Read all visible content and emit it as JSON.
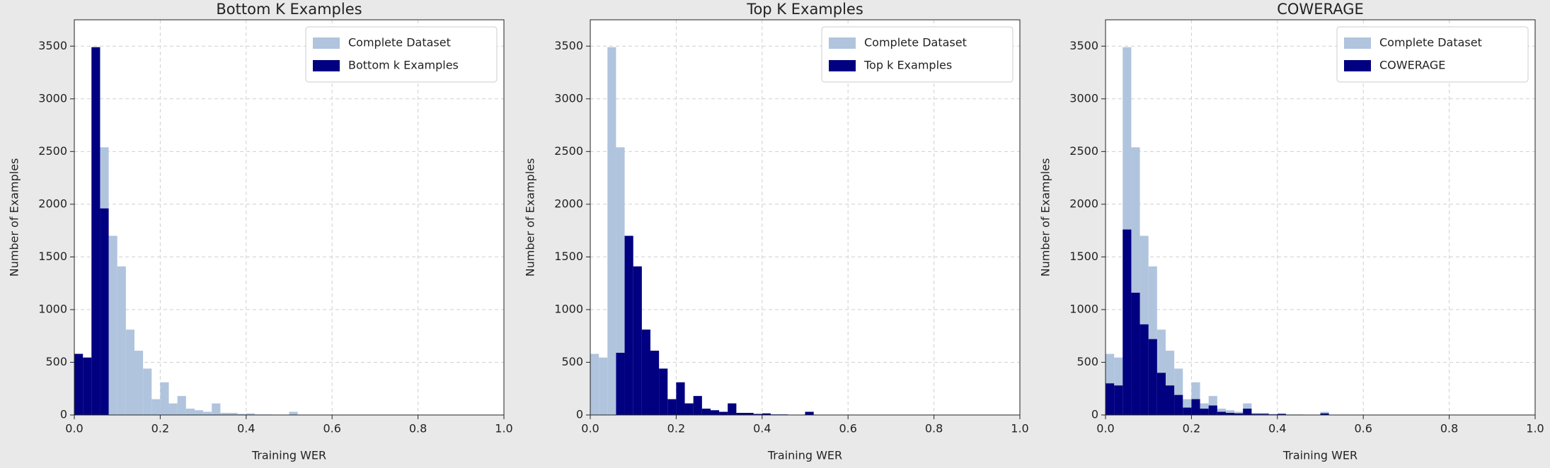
{
  "chart_data": [
    {
      "type": "histogram",
      "title": "Bottom K Examples",
      "xlabel": "Training WER",
      "ylabel": "Number of Examples",
      "bins": [
        0.0,
        0.02,
        0.04,
        0.06,
        0.08,
        0.1,
        0.12,
        0.14,
        0.16,
        0.18,
        0.2,
        0.22,
        0.24,
        0.26,
        0.28,
        0.3,
        0.32,
        0.34,
        0.36,
        0.38,
        0.4,
        0.42,
        0.44,
        0.46,
        0.48,
        0.5,
        0.52,
        0.54,
        0.56,
        0.58,
        0.6,
        0.62,
        0.64,
        0.66,
        0.68,
        0.7,
        0.72,
        0.74,
        0.76,
        0.78,
        0.8,
        0.82,
        0.84,
        0.86,
        0.88,
        0.9,
        0.92,
        0.94,
        0.96,
        0.98,
        1.0
      ],
      "series": [
        {
          "name": "Complete Dataset",
          "color": "#b0c4de",
          "values": [
            580,
            545,
            3490,
            2540,
            1700,
            1410,
            810,
            610,
            440,
            150,
            310,
            110,
            180,
            60,
            45,
            30,
            110,
            20,
            20,
            10,
            15,
            5,
            5,
            0,
            0,
            30,
            0,
            0,
            0,
            0,
            0,
            0,
            0,
            0,
            0,
            0,
            0,
            0,
            0,
            0,
            0,
            0,
            0,
            0,
            0,
            0,
            0,
            0,
            0,
            0
          ]
        },
        {
          "name": "Bottom k Examples",
          "color": "#000080",
          "values": [
            580,
            545,
            3490,
            1960,
            0,
            0,
            0,
            0,
            0,
            0,
            0,
            0,
            0,
            0,
            0,
            0,
            0,
            0,
            0,
            0,
            0,
            0,
            0,
            0,
            0,
            0,
            0,
            0,
            0,
            0,
            0,
            0,
            0,
            0,
            0,
            0,
            0,
            0,
            0,
            0,
            0,
            0,
            0,
            0,
            0,
            0,
            0,
            0,
            0,
            0
          ]
        }
      ],
      "xlim": [
        0,
        1
      ],
      "ylim": [
        0,
        3750
      ],
      "xticks": [
        {
          "value": 0,
          "label": "0.0"
        },
        0.2,
        0.4,
        0.6,
        0.8,
        {
          "value": 1,
          "label": "1.0"
        }
      ],
      "yticks": [
        0,
        500,
        1000,
        1500,
        2000,
        2500,
        3000,
        3500
      ],
      "grid": true,
      "legend": "upper right"
    },
    {
      "type": "histogram",
      "title": "Top K Examples",
      "xlabel": "Training WER",
      "ylabel": "Number of Examples",
      "bins": [
        0.0,
        0.02,
        0.04,
        0.06,
        0.08,
        0.1,
        0.12,
        0.14,
        0.16,
        0.18,
        0.2,
        0.22,
        0.24,
        0.26,
        0.28,
        0.3,
        0.32,
        0.34,
        0.36,
        0.38,
        0.4,
        0.42,
        0.44,
        0.46,
        0.48,
        0.5,
        0.52,
        0.54,
        0.56,
        0.58,
        0.6,
        0.62,
        0.64,
        0.66,
        0.68,
        0.7,
        0.72,
        0.74,
        0.76,
        0.78,
        0.8,
        0.82,
        0.84,
        0.86,
        0.88,
        0.9,
        0.92,
        0.94,
        0.96,
        0.98,
        1.0
      ],
      "series": [
        {
          "name": "Complete Dataset",
          "color": "#b0c4de",
          "values": [
            580,
            545,
            3490,
            2540,
            1700,
            1410,
            810,
            610,
            440,
            150,
            310,
            110,
            180,
            60,
            45,
            30,
            110,
            20,
            20,
            10,
            15,
            5,
            5,
            0,
            0,
            30,
            0,
            0,
            0,
            0,
            0,
            0,
            0,
            0,
            0,
            0,
            0,
            0,
            0,
            0,
            0,
            0,
            0,
            0,
            0,
            0,
            0,
            0,
            0,
            0
          ]
        },
        {
          "name": "Top k Examples",
          "color": "#000080",
          "values": [
            0,
            0,
            0,
            590,
            1700,
            1410,
            810,
            610,
            440,
            150,
            310,
            110,
            180,
            60,
            45,
            30,
            110,
            20,
            20,
            10,
            15,
            5,
            5,
            0,
            0,
            30,
            0,
            0,
            0,
            0,
            0,
            0,
            0,
            0,
            0,
            0,
            0,
            0,
            0,
            0,
            0,
            0,
            0,
            0,
            0,
            0,
            0,
            0,
            0,
            0
          ]
        }
      ],
      "xlim": [
        0,
        1
      ],
      "ylim": [
        0,
        3750
      ],
      "xticks": [
        {
          "value": 0,
          "label": "0.0"
        },
        0.2,
        0.4,
        0.6,
        0.8,
        {
          "value": 1,
          "label": "1.0"
        }
      ],
      "yticks": [
        0,
        500,
        1000,
        1500,
        2000,
        2500,
        3000,
        3500
      ],
      "grid": true,
      "legend": "upper right"
    },
    {
      "type": "histogram",
      "title": "COWERAGE",
      "xlabel": "Training WER",
      "ylabel": "Number of Examples",
      "bins": [
        0.0,
        0.02,
        0.04,
        0.06,
        0.08,
        0.1,
        0.12,
        0.14,
        0.16,
        0.18,
        0.2,
        0.22,
        0.24,
        0.26,
        0.28,
        0.3,
        0.32,
        0.34,
        0.36,
        0.38,
        0.4,
        0.42,
        0.44,
        0.46,
        0.48,
        0.5,
        0.52,
        0.54,
        0.56,
        0.58,
        0.6,
        0.62,
        0.64,
        0.66,
        0.68,
        0.7,
        0.72,
        0.74,
        0.76,
        0.78,
        0.8,
        0.82,
        0.84,
        0.86,
        0.88,
        0.9,
        0.92,
        0.94,
        0.96,
        0.98,
        1.0
      ],
      "series": [
        {
          "name": "Complete Dataset",
          "color": "#b0c4de",
          "values": [
            580,
            545,
            3490,
            2540,
            1700,
            1410,
            810,
            610,
            440,
            150,
            310,
            110,
            180,
            60,
            45,
            30,
            110,
            20,
            20,
            10,
            15,
            5,
            5,
            0,
            0,
            30,
            0,
            0,
            0,
            0,
            0,
            0,
            0,
            0,
            0,
            0,
            0,
            0,
            0,
            0,
            0,
            0,
            0,
            0,
            0,
            0,
            0,
            0,
            0,
            0
          ]
        },
        {
          "name": "COWERAGE",
          "color": "#000080",
          "values": [
            300,
            280,
            1760,
            1160,
            860,
            720,
            400,
            280,
            190,
            70,
            150,
            60,
            90,
            30,
            20,
            15,
            60,
            10,
            10,
            5,
            10,
            3,
            3,
            0,
            0,
            15,
            0,
            0,
            0,
            0,
            0,
            0,
            0,
            0,
            0,
            0,
            0,
            0,
            0,
            0,
            0,
            0,
            0,
            0,
            0,
            0,
            0,
            0,
            0,
            0
          ]
        }
      ],
      "xlim": [
        0,
        1
      ],
      "ylim": [
        0,
        3750
      ],
      "xticks": [
        {
          "value": 0,
          "label": "0.0"
        },
        0.2,
        0.4,
        0.6,
        0.8,
        {
          "value": 1,
          "label": "1.0"
        }
      ],
      "yticks": [
        0,
        500,
        1000,
        1500,
        2000,
        2500,
        3000,
        3500
      ],
      "grid": true,
      "legend": "upper right"
    }
  ]
}
